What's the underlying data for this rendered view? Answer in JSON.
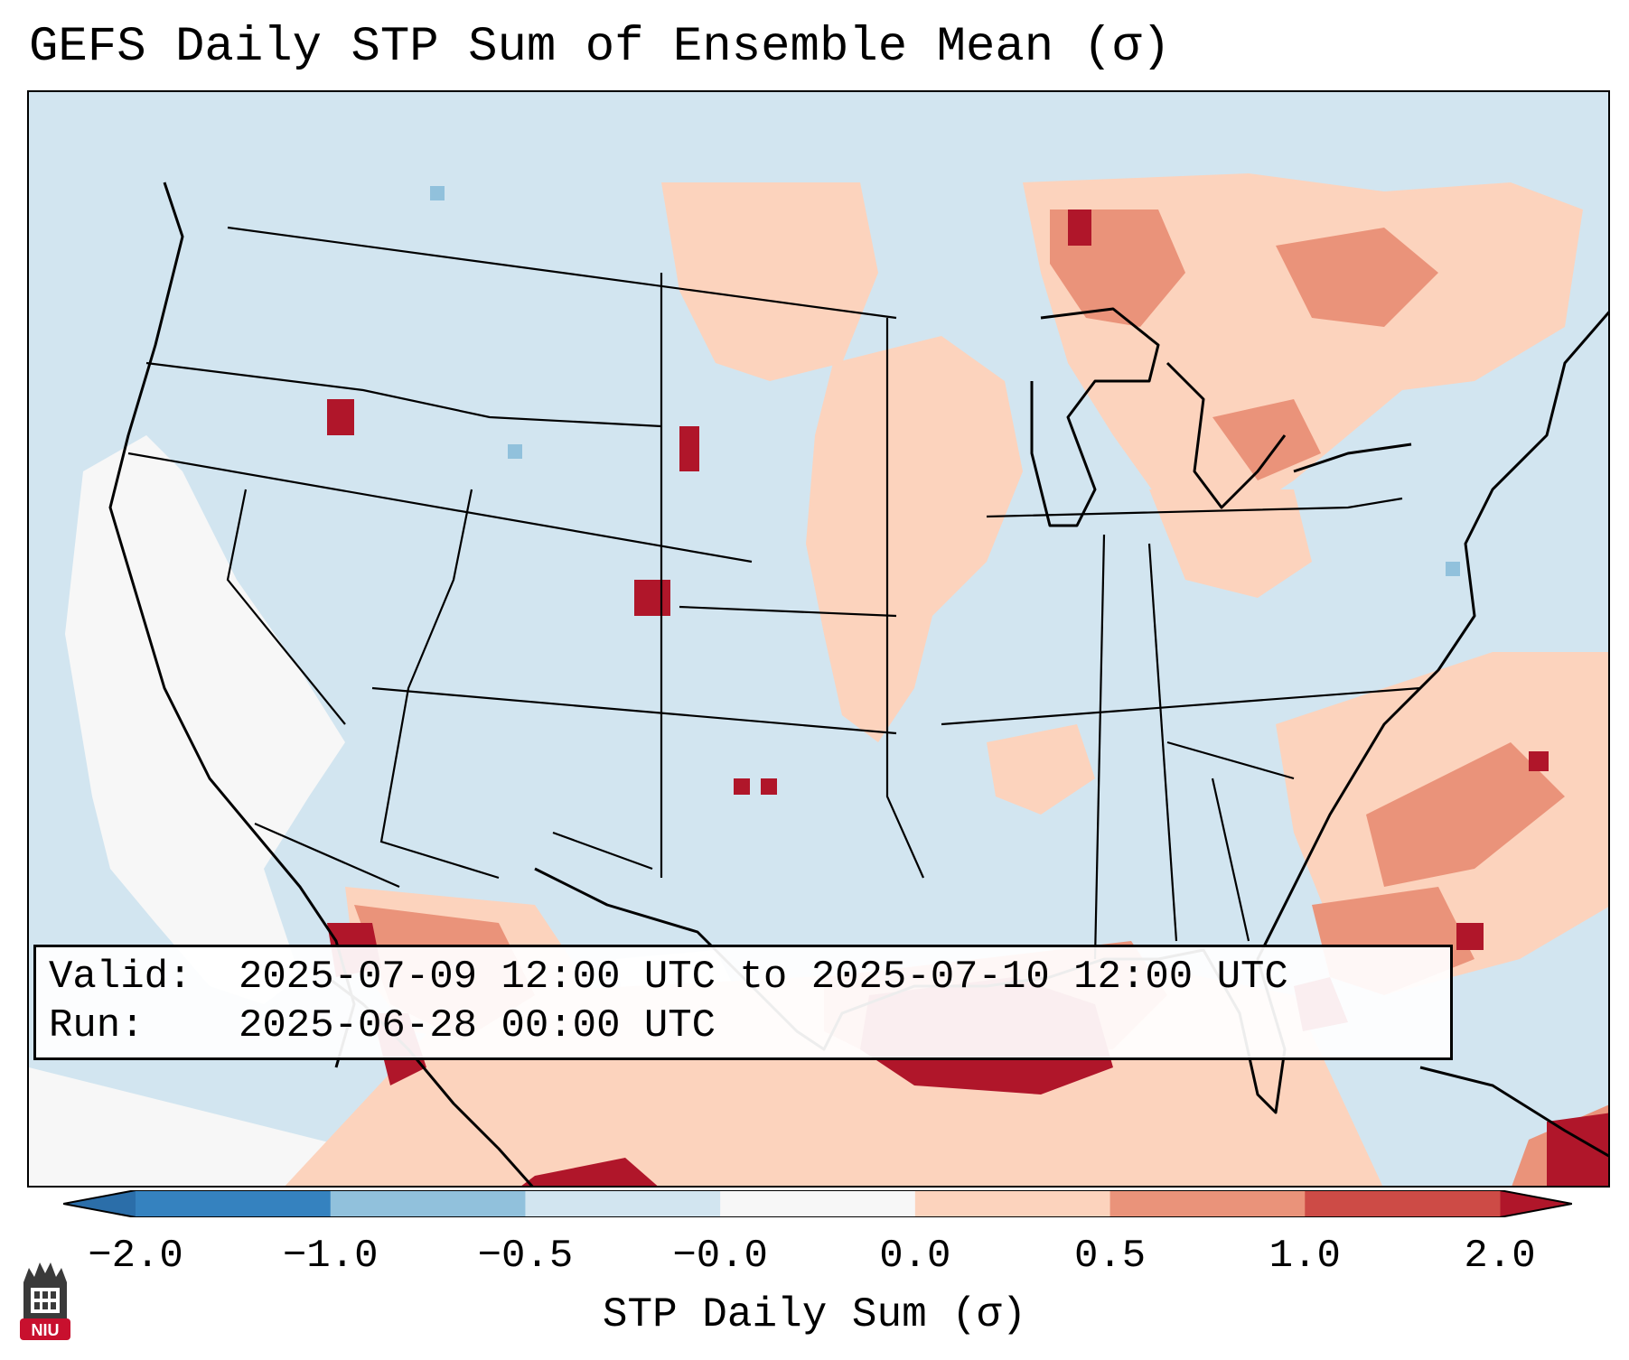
{
  "title": "GEFS Daily STP Sum of Ensemble Mean (σ)",
  "info": {
    "valid_label": "Valid:",
    "valid_value": "2025-07-09 12:00 UTC to 2025-07-10 12:00 UTC",
    "run_label": "Run:",
    "run_value": "2025-06-28 00:00 UTC"
  },
  "colorbar": {
    "label": "STP Daily Sum (σ)",
    "ticks": [
      "−2.0",
      "−1.0",
      "−0.5",
      "−0.0",
      "0.0",
      "0.5",
      "1.0",
      "2.0"
    ],
    "colors": [
      "#3582bf",
      "#91c1dc",
      "#d2e5f0",
      "#f7f7f7",
      "#fcd3bd",
      "#ea937a",
      "#cd4b46"
    ],
    "under_color": "#2b6ea9",
    "over_color": "#b0162a"
  },
  "logo": {
    "text": "NIU",
    "color": "#c8102e"
  }
}
